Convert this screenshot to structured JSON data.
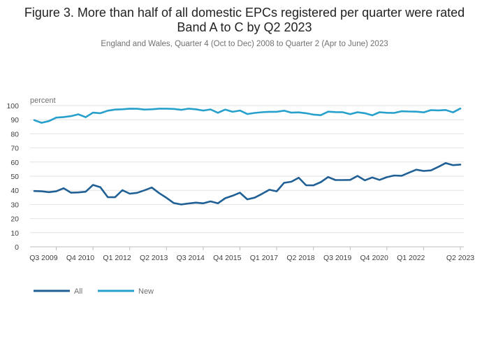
{
  "chart_data": {
    "type": "line",
    "title": "Figure 3. More than half of all domestic EPCs registered per quarter were rated Band A to C by Q2 2023",
    "subtitle": "England and Wales, Quarter 4 (Oct to Dec) 2008 to Quarter 2 (Apr to June) 2023",
    "ylabel": "percent",
    "xlabel": "",
    "ylim": [
      0,
      100
    ],
    "yticks": [
      0,
      10,
      20,
      30,
      40,
      50,
      60,
      70,
      80,
      90,
      100
    ],
    "grid": true,
    "legend_position": "bottom-left",
    "x": [
      "Q4 2008",
      "Q1 2009",
      "Q2 2009",
      "Q3 2009",
      "Q4 2009",
      "Q1 2010",
      "Q2 2010",
      "Q3 2010",
      "Q4 2010",
      "Q1 2011",
      "Q2 2011",
      "Q3 2011",
      "Q4 2011",
      "Q1 2012",
      "Q2 2012",
      "Q3 2012",
      "Q4 2012",
      "Q1 2013",
      "Q2 2013",
      "Q3 2013",
      "Q4 2013",
      "Q1 2014",
      "Q2 2014",
      "Q3 2014",
      "Q4 2014",
      "Q1 2015",
      "Q2 2015",
      "Q3 2015",
      "Q4 2015",
      "Q1 2016",
      "Q2 2016",
      "Q3 2016",
      "Q4 2016",
      "Q1 2017",
      "Q2 2017",
      "Q3 2017",
      "Q4 2017",
      "Q1 2018",
      "Q2 2018",
      "Q3 2018",
      "Q4 2018",
      "Q1 2019",
      "Q2 2019",
      "Q3 2019",
      "Q4 2019",
      "Q1 2020",
      "Q2 2020",
      "Q3 2020",
      "Q4 2020",
      "Q1 2021",
      "Q2 2021",
      "Q3 2021",
      "Q4 2021",
      "Q1 2022",
      "Q2 2022",
      "Q3 2022",
      "Q4 2022",
      "Q1 2023",
      "Q2 2023"
    ],
    "x_tick_labels": [
      "Q3 2009",
      "Q4 2010",
      "Q1 2012",
      "Q2 2013",
      "Q3 2014",
      "Q4 2015",
      "Q1 2017",
      "Q2 2018",
      "Q3 2019",
      "Q4 2020",
      "Q1 2022",
      "Q2 2023"
    ],
    "series": [
      {
        "name": "All",
        "color": "#206095",
        "values": [
          39.5,
          39.3,
          38.7,
          39.3,
          41.5,
          38.3,
          38.5,
          39.0,
          43.8,
          42.2,
          35.2,
          35.1,
          40.1,
          37.6,
          38.2,
          40.0,
          42.0,
          38.0,
          34.7,
          31.0,
          30.0,
          30.7,
          31.3,
          30.8,
          32.2,
          30.8,
          34.4,
          36.2,
          38.3,
          33.6,
          34.8,
          37.5,
          40.4,
          39.3,
          45.3,
          46.1,
          48.9,
          43.6,
          43.5,
          45.8,
          49.4,
          47.3,
          47.3,
          47.4,
          50.2,
          47.1,
          49.1,
          47.4,
          49.3,
          50.5,
          50.3,
          52.5,
          54.6,
          53.7,
          54.1,
          56.6,
          59.3,
          57.8,
          58.2
        ]
      },
      {
        "name": "New",
        "color": "#27a0cc",
        "values": [
          89.7,
          87.8,
          89.0,
          91.5,
          91.9,
          92.5,
          93.8,
          91.8,
          95.0,
          94.6,
          96.4,
          97.2,
          97.4,
          97.8,
          97.7,
          97.2,
          97.4,
          97.8,
          97.8,
          97.6,
          97.0,
          97.8,
          97.4,
          96.5,
          97.3,
          94.9,
          97.2,
          95.6,
          96.5,
          94.0,
          94.8,
          95.3,
          95.6,
          95.6,
          96.4,
          95.0,
          95.2,
          94.6,
          93.6,
          93.2,
          95.7,
          95.4,
          95.3,
          93.9,
          95.3,
          94.6,
          93.1,
          95.3,
          94.9,
          94.8,
          96.0,
          95.8,
          95.7,
          95.2,
          96.8,
          96.6,
          96.9,
          95.2,
          97.9
        ]
      }
    ]
  }
}
